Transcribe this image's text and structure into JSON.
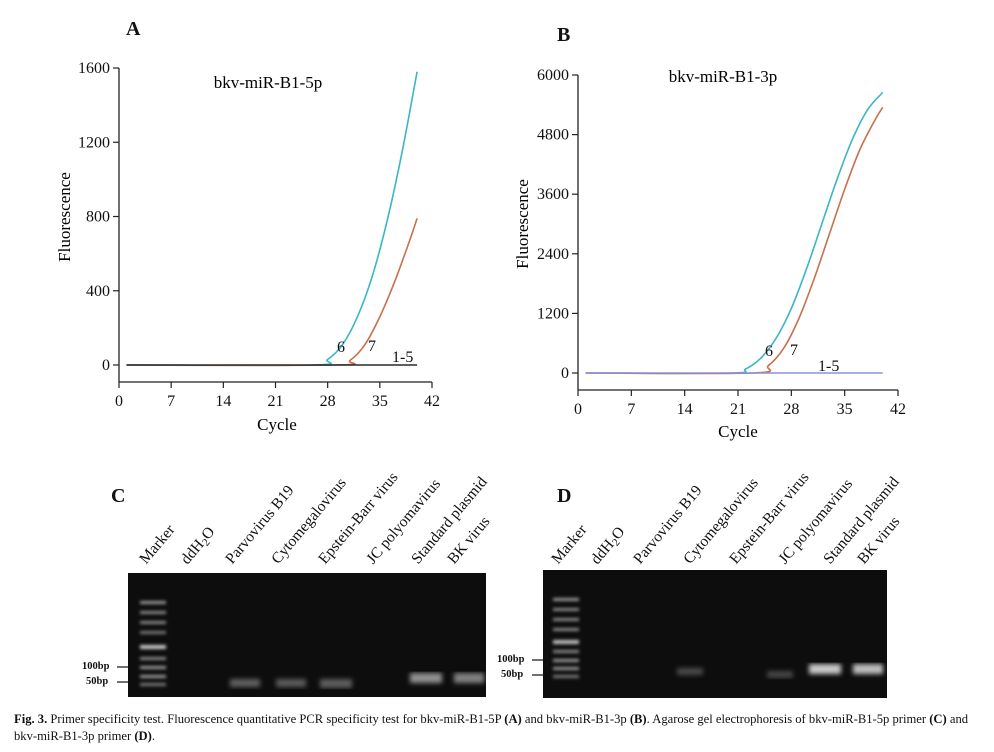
{
  "colors": {
    "curve_cyan": "#3bb6c6",
    "curve_orange": "#c8704b",
    "baseline_dark": "#2a2a2a",
    "baseline_blue": "#8a93d6",
    "axis": "#222222"
  },
  "chart_data": [
    {
      "panel": "A",
      "type": "line",
      "title": "bkv-miR-B1-5p",
      "xlabel": "Cycle",
      "ylabel": "Fluorescence",
      "xlim": [
        0,
        42
      ],
      "ylim": [
        0,
        1600
      ],
      "xticks": [
        0,
        7,
        14,
        21,
        28,
        35,
        42
      ],
      "yticks": [
        0,
        400,
        800,
        1200,
        1600
      ],
      "series": [
        {
          "name": "6",
          "color": "#3bb6c6",
          "x": [
            1,
            26,
            28,
            30,
            32,
            34,
            36,
            38,
            40
          ],
          "y": [
            0,
            0,
            30,
            110,
            260,
            480,
            780,
            1150,
            1580
          ]
        },
        {
          "name": "7",
          "color": "#c8704b",
          "x": [
            1,
            29,
            31,
            33,
            35,
            37,
            39,
            40
          ],
          "y": [
            0,
            0,
            25,
            110,
            260,
            450,
            670,
            790
          ]
        },
        {
          "name": "1-5",
          "color": "#2a2a2a",
          "x": [
            1,
            40
          ],
          "y": [
            0,
            0
          ]
        }
      ],
      "annotations": [
        "6",
        "7",
        "1-5"
      ]
    },
    {
      "panel": "B",
      "type": "line",
      "title": "bkv-miR-B1-3p",
      "xlabel": "Cycle",
      "ylabel": "Fluorescence",
      "xlim": [
        0,
        42
      ],
      "ylim": [
        0,
        6000
      ],
      "xticks": [
        0,
        7,
        14,
        21,
        28,
        35,
        42
      ],
      "yticks": [
        0,
        1200,
        2400,
        3600,
        4800,
        6000
      ],
      "series": [
        {
          "name": "6",
          "color": "#3bb6c6",
          "x": [
            1,
            20,
            22,
            24,
            26,
            28,
            30,
            32,
            34,
            36,
            38,
            40
          ],
          "y": [
            0,
            0,
            80,
            300,
            700,
            1300,
            2100,
            3000,
            3900,
            4700,
            5300,
            5650
          ]
        },
        {
          "name": "7",
          "color": "#c8704b",
          "x": [
            1,
            23,
            25,
            27,
            29,
            31,
            33,
            35,
            37,
            39,
            40
          ],
          "y": [
            0,
            0,
            150,
            500,
            1100,
            1900,
            2800,
            3700,
            4500,
            5100,
            5350
          ]
        },
        {
          "name": "1-5",
          "color": "#8a93d6",
          "x": [
            1,
            40
          ],
          "y": [
            0,
            0
          ]
        }
      ],
      "annotations": [
        "6",
        "7",
        "1-5"
      ]
    }
  ],
  "panels": {
    "a": "A",
    "b": "B",
    "c": "C",
    "d": "D",
    "title_a": "bkv-miR-B1-5p",
    "title_b": "bkv-miR-B1-3p",
    "xlabel": "Cycle",
    "ylabel": "Fluorescence"
  },
  "gel_lanes": [
    "Marker",
    "ddH",
    "Parvovirus B19",
    "Cytomegalovirus",
    "Epstein-Barr virus",
    "JC polyomavirus",
    "Standard plasmid",
    "BK virus"
  ],
  "gel_water_sub": "2",
  "gel_water_tail": "O",
  "bp_labels": {
    "bp100": "100bp",
    "bp50": "50bp"
  },
  "caption": {
    "fig": "Fig. 3.",
    "t1": " Primer specificity test. Fluorescence quantitative PCR specificity test for bkv-miR-B1-5P ",
    "a": "(A)",
    "t2": " and bkv-miR-B1-3p ",
    "b": "(B)",
    "t3": ". Agarose gel electrophoresis of bkv-miR-B1-5p primer ",
    "c": "(C)",
    "t4": " and bkv-miR-B1-3p primer ",
    "d": "(D)",
    "t5": "."
  }
}
